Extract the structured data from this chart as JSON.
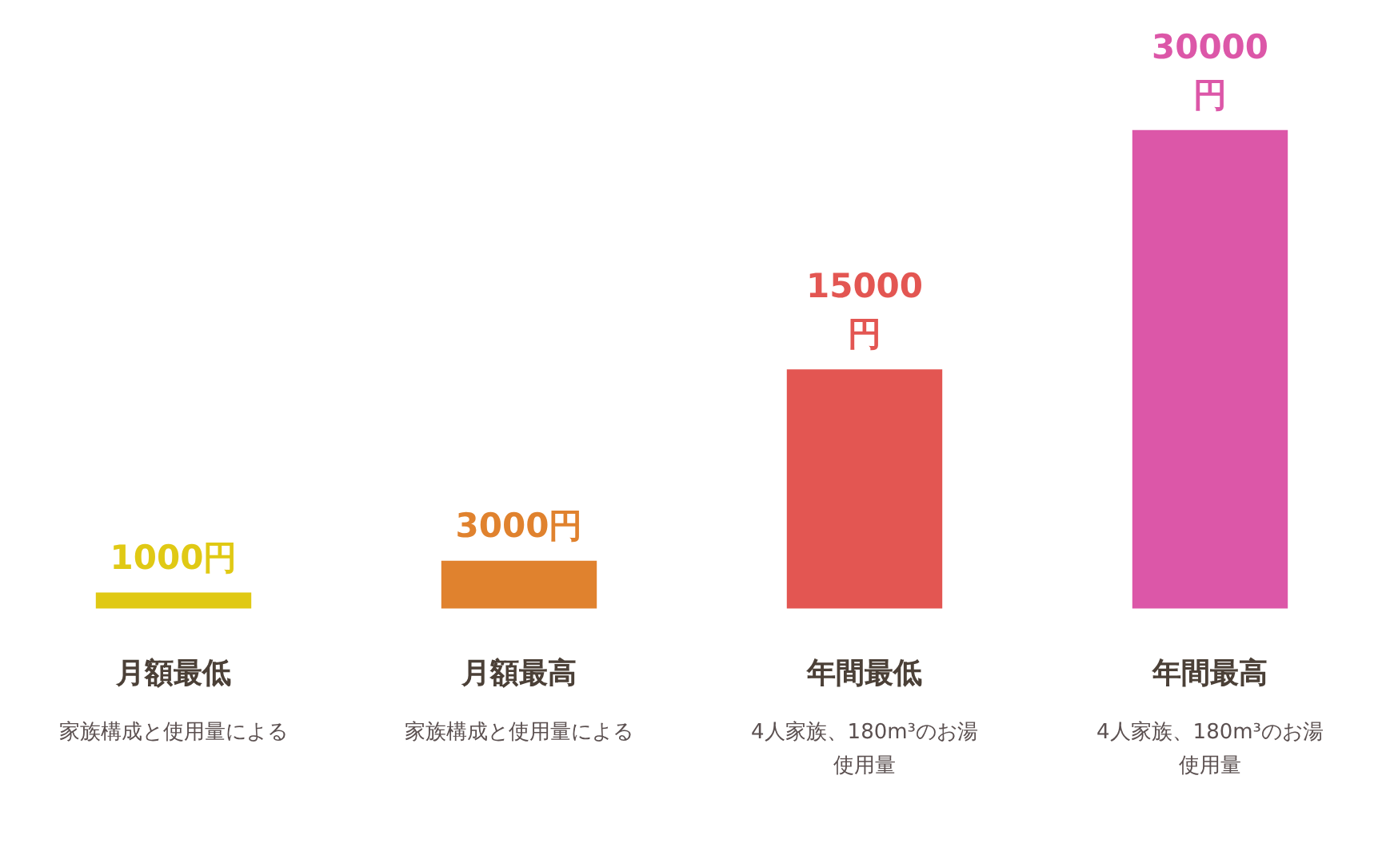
{
  "chart_data": {
    "type": "bar",
    "categories": [
      "月額最低",
      "月額最高",
      "年間最低",
      "年間最高"
    ],
    "values": [
      1000,
      3000,
      15000,
      30000
    ],
    "colors": [
      "#e0c914",
      "#e0822e",
      "#e35652",
      "#dc57a8"
    ],
    "value_labels": [
      "1000円",
      "3000円",
      "15000\n円",
      "30000\n円"
    ],
    "annotations": [
      "家族構成と使用量による",
      "家族構成と使用量による",
      "4人家族、180m³のお湯使用量",
      "4人家族、180m³のお湯使用量"
    ]
  }
}
